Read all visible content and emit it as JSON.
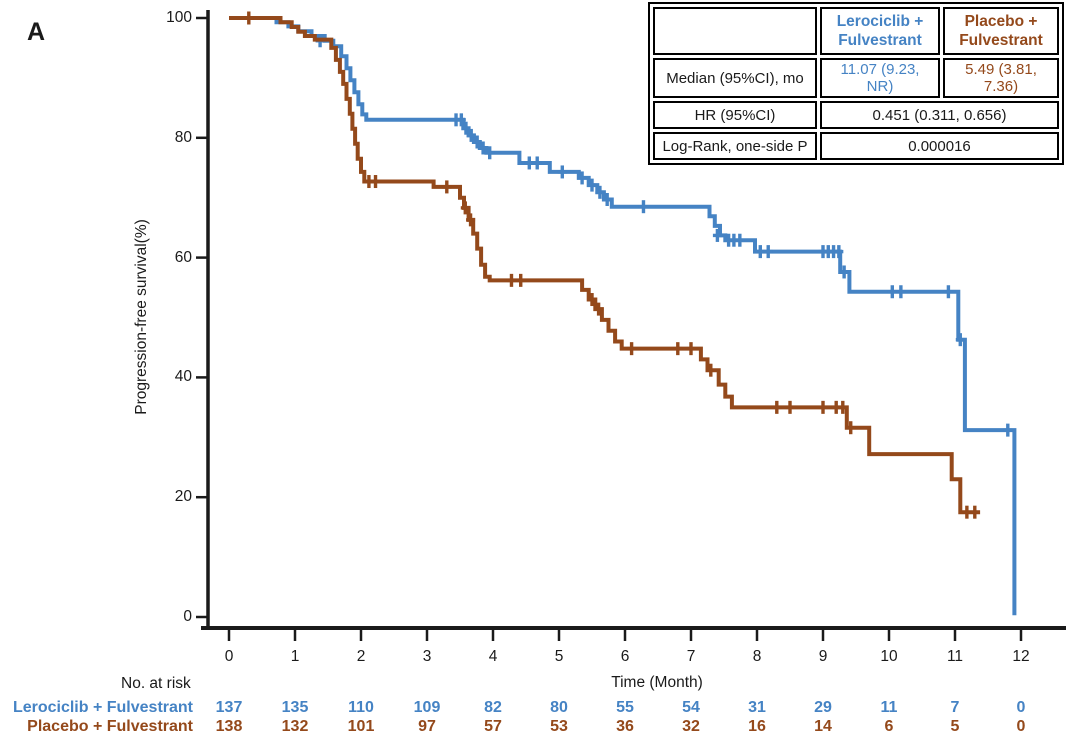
{
  "panel_label": "A",
  "colors": {
    "lerociclib_blue": "#4583C4",
    "placebo_brown": "#94491B",
    "axis": "#1a1a1a"
  },
  "stats_table": {
    "col_headers": [
      "",
      "Lerociclib +\nFulvestrant",
      "Placebo +\nFulvestrant"
    ],
    "rows": [
      {
        "label": "Median (95%CI), mo",
        "lerociclib": "11.07 (9.23, NR)",
        "placebo": "5.49 (3.81, 7.36)"
      },
      {
        "label": "HR (95%CI)",
        "value": "0.451 (0.311, 0.656)"
      },
      {
        "label": "Log-Rank, one-side P",
        "value": "0.000016"
      }
    ]
  },
  "chart_data": {
    "type": "line",
    "subtype": "kaplan-meier-step",
    "title": "",
    "xlabel": "Time (Month)",
    "ylabel": "Progression-free survival(%)",
    "xlim": [
      0,
      12
    ],
    "ylim": [
      0,
      100
    ],
    "xticks": [
      0,
      1,
      2,
      3,
      4,
      5,
      6,
      7,
      8,
      9,
      10,
      11,
      12
    ],
    "yticks": [
      0,
      20,
      40,
      60,
      80,
      100
    ],
    "grid": false,
    "legend_position": "none",
    "series": [
      {
        "name": "Lerociclib + Fulvestrant",
        "color": "#4583C4",
        "median_95ci": "11.07 (9.23, NR)",
        "points": [
          [
            0,
            100
          ],
          [
            0.72,
            99.3
          ],
          [
            0.9,
            98.6
          ],
          [
            1.05,
            97.8
          ],
          [
            1.25,
            97.0
          ],
          [
            1.45,
            96.2
          ],
          [
            1.58,
            95.3
          ],
          [
            1.7,
            93.6
          ],
          [
            1.78,
            91.6
          ],
          [
            1.84,
            89.6
          ],
          [
            1.9,
            87.6
          ],
          [
            1.96,
            85.6
          ],
          [
            2.02,
            83.9
          ],
          [
            2.08,
            83.0
          ],
          [
            3.55,
            81.6
          ],
          [
            3.63,
            80.4
          ],
          [
            3.71,
            79.3
          ],
          [
            3.8,
            78.3
          ],
          [
            3.9,
            77.5
          ],
          [
            4.4,
            75.8
          ],
          [
            4.86,
            74.3
          ],
          [
            5.3,
            73.3
          ],
          [
            5.45,
            72.1
          ],
          [
            5.58,
            70.9
          ],
          [
            5.68,
            69.7
          ],
          [
            5.8,
            68.5
          ],
          [
            7.28,
            66.9
          ],
          [
            7.36,
            65.3
          ],
          [
            7.44,
            63.7
          ],
          [
            7.52,
            62.9
          ],
          [
            7.97,
            61.0
          ],
          [
            9.26,
            57.6
          ],
          [
            9.4,
            54.3
          ],
          [
            11.05,
            46.3
          ],
          [
            11.15,
            31.2
          ],
          [
            11.9,
            0.3
          ]
        ],
        "end_time": 11.9,
        "censors": [
          [
            1.38,
            96.2
          ],
          [
            3.44,
            83.0
          ],
          [
            3.52,
            83.0
          ],
          [
            3.59,
            81.6
          ],
          [
            3.67,
            80.4
          ],
          [
            3.76,
            79.3
          ],
          [
            3.85,
            78.3
          ],
          [
            3.95,
            77.5
          ],
          [
            4.55,
            75.8
          ],
          [
            4.67,
            75.8
          ],
          [
            5.05,
            74.3
          ],
          [
            5.35,
            73.3
          ],
          [
            5.5,
            72.1
          ],
          [
            5.62,
            70.9
          ],
          [
            5.73,
            69.7
          ],
          [
            6.28,
            68.5
          ],
          [
            7.4,
            63.7
          ],
          [
            7.57,
            62.9
          ],
          [
            7.65,
            62.9
          ],
          [
            7.74,
            62.9
          ],
          [
            8.05,
            61.0
          ],
          [
            8.17,
            61.0
          ],
          [
            9.0,
            61.0
          ],
          [
            9.08,
            61.0
          ],
          [
            9.16,
            61.0
          ],
          [
            9.24,
            61.0
          ],
          [
            9.32,
            57.6
          ],
          [
            10.05,
            54.3
          ],
          [
            10.18,
            54.3
          ],
          [
            10.9,
            54.3
          ],
          [
            11.08,
            46.3
          ],
          [
            11.8,
            31.2
          ]
        ]
      },
      {
        "name": "Placebo + Fulvestrant",
        "color": "#94491B",
        "median_95ci": "5.49 (3.81, 7.36)",
        "points": [
          [
            0,
            100
          ],
          [
            0.78,
            99.3
          ],
          [
            0.95,
            98.5
          ],
          [
            1.05,
            97.7
          ],
          [
            1.15,
            97.0
          ],
          [
            1.3,
            96.4
          ],
          [
            1.55,
            95.0
          ],
          [
            1.62,
            93.0
          ],
          [
            1.68,
            91.0
          ],
          [
            1.73,
            89.0
          ],
          [
            1.78,
            86.5
          ],
          [
            1.83,
            84.0
          ],
          [
            1.87,
            81.5
          ],
          [
            1.91,
            79.0
          ],
          [
            1.95,
            76.5
          ],
          [
            2.0,
            74.3
          ],
          [
            2.05,
            72.7
          ],
          [
            3.1,
            71.8
          ],
          [
            3.5,
            70.0
          ],
          [
            3.56,
            68.3
          ],
          [
            3.63,
            66.3
          ],
          [
            3.7,
            64.0
          ],
          [
            3.76,
            61.5
          ],
          [
            3.82,
            58.8
          ],
          [
            3.88,
            56.8
          ],
          [
            3.95,
            56.2
          ],
          [
            5.35,
            54.6
          ],
          [
            5.45,
            53.0
          ],
          [
            5.55,
            51.4
          ],
          [
            5.65,
            49.6
          ],
          [
            5.75,
            47.8
          ],
          [
            5.85,
            46.0
          ],
          [
            5.95,
            44.8
          ],
          [
            7.15,
            43.0
          ],
          [
            7.25,
            41.2
          ],
          [
            7.42,
            38.8
          ],
          [
            7.52,
            36.8
          ],
          [
            7.62,
            35.0
          ],
          [
            9.36,
            31.6
          ],
          [
            9.7,
            27.2
          ],
          [
            10.95,
            23.0
          ],
          [
            11.08,
            17.5
          ]
        ],
        "end_time": 11.38,
        "censors": [
          [
            0.3,
            100
          ],
          [
            2.12,
            72.7
          ],
          [
            2.22,
            72.7
          ],
          [
            3.3,
            71.8
          ],
          [
            3.58,
            68.3
          ],
          [
            3.66,
            66.3
          ],
          [
            4.28,
            56.2
          ],
          [
            4.42,
            56.2
          ],
          [
            5.5,
            53.0
          ],
          [
            5.6,
            51.4
          ],
          [
            6.1,
            44.8
          ],
          [
            6.8,
            44.8
          ],
          [
            7.0,
            44.8
          ],
          [
            7.3,
            41.2
          ],
          [
            8.3,
            35.0
          ],
          [
            8.5,
            35.0
          ],
          [
            9.0,
            35.0
          ],
          [
            9.2,
            35.0
          ],
          [
            9.3,
            35.0
          ],
          [
            9.42,
            31.6
          ],
          [
            11.18,
            17.5
          ],
          [
            11.3,
            17.5
          ]
        ]
      }
    ],
    "stats": {
      "hr_95ci": "0.451 (0.311, 0.656)",
      "log_rank_one_side_p": "0.000016"
    }
  },
  "risk_table": {
    "title": "No. at risk",
    "time_points": [
      0,
      1,
      2,
      3,
      4,
      5,
      6,
      7,
      8,
      9,
      10,
      11,
      12
    ],
    "rows": [
      {
        "label": "Lerociclib + Fulvestrant",
        "color": "#4583C4",
        "values": [
          137,
          135,
          110,
          109,
          82,
          80,
          55,
          54,
          31,
          29,
          11,
          7,
          0
        ]
      },
      {
        "label": "Placebo + Fulvestrant",
        "color": "#94491B",
        "values": [
          138,
          132,
          101,
          97,
          57,
          53,
          36,
          32,
          16,
          14,
          6,
          5,
          0
        ]
      }
    ]
  }
}
